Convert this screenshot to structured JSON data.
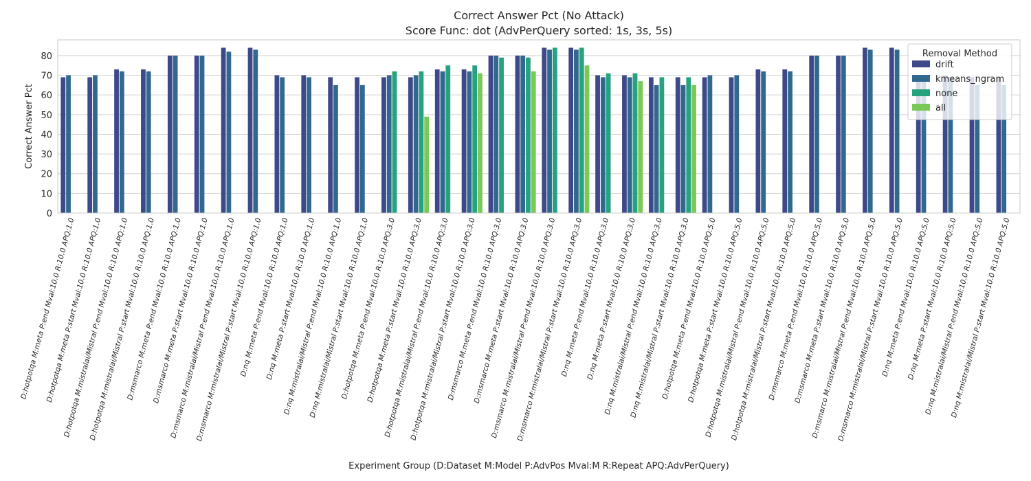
{
  "colors": {
    "drift": "#3e4989",
    "kmeans_ngram": "#31688e",
    "none": "#26a27f",
    "all": "#7ac857",
    "grid": "#d3d3d3",
    "axes": "#c8c8c8",
    "text": "#262626",
    "legend_border": "#cccccc"
  },
  "chart_data": {
    "type": "bar",
    "title_line1": "Correct Answer Pct (No Attack)",
    "title_line2": "Score Func: dot (AdvPerQuery sorted: 1s, 3s, 5s)",
    "xlabel": "Experiment Group (D:Dataset M:Model P:AdvPos Mval:M R:Repeat APQ:AdvPerQuery)",
    "ylabel": "Correct Answer Pct",
    "ylim": [
      0,
      88
    ],
    "yticks": [
      0,
      10,
      20,
      30,
      40,
      50,
      60,
      70,
      80
    ],
    "grid": true,
    "legend": {
      "title": "Removal Method",
      "placement": "top-right",
      "entries": [
        "drift",
        "kmeans_ngram",
        "none",
        "all"
      ]
    },
    "categories": [
      "D:hotpotqa M:meta P:end Mval:10.0 R:10.0 APQ:1.0",
      "D:hotpotqa M:meta P:start Mval:10.0 R:10.0 APQ:1.0",
      "D:hotpotqa M:mistralai/Mistral P:end Mval:10.0 R:10.0 APQ:1.0",
      "D:hotpotqa M:mistralai/Mistral P:start Mval:10.0 R:10.0 APQ:1.0",
      "D:msmarco M:meta P:end Mval:10.0 R:10.0 APQ:1.0",
      "D:msmarco M:meta P:start Mval:10.0 R:10.0 APQ:1.0",
      "D:msmarco M:mistralai/Mistral P:end Mval:10.0 R:10.0 APQ:1.0",
      "D:msmarco M:mistralai/Mistral P:start Mval:10.0 R:10.0 APQ:1.0",
      "D:nq M:meta P:end Mval:10.0 R:10.0 APQ:1.0",
      "D:nq M:meta P:start Mval:10.0 R:10.0 APQ:1.0",
      "D:nq M:mistralai/Mistral P:end Mval:10.0 R:10.0 APQ:1.0",
      "D:nq M:mistralai/Mistral P:start Mval:10.0 R:10.0 APQ:1.0",
      "D:hotpotqa M:meta P:end Mval:10.0 R:10.0 APQ:3.0",
      "D:hotpotqa M:meta P:start Mval:10.0 R:10.0 APQ:3.0",
      "D:hotpotqa M:mistralai/Mistral P:end Mval:10.0 R:10.0 APQ:3.0",
      "D:hotpotqa M:mistralai/Mistral P:start Mval:10.0 R:10.0 APQ:3.0",
      "D:msmarco M:meta P:end Mval:10.0 R:10.0 APQ:3.0",
      "D:msmarco M:meta P:start Mval:10.0 R:10.0 APQ:3.0",
      "D:msmarco M:mistralai/Mistral P:end Mval:10.0 R:10.0 APQ:3.0",
      "D:msmarco M:mistralai/Mistral P:start Mval:10.0 R:10.0 APQ:3.0",
      "D:nq M:meta P:end Mval:10.0 R:10.0 APQ:3.0",
      "D:nq M:meta P:start Mval:10.0 R:10.0 APQ:3.0",
      "D:nq M:mistralai/Mistral P:end Mval:10.0 R:10.0 APQ:3.0",
      "D:nq M:mistralai/Mistral P:start Mval:10.0 R:10.0 APQ:3.0",
      "D:hotpotqa M:meta P:end Mval:10.0 R:10.0 APQ:5.0",
      "D:hotpotqa M:meta P:start Mval:10.0 R:10.0 APQ:5.0",
      "D:hotpotqa M:mistralai/Mistral P:end Mval:10.0 R:10.0 APQ:5.0",
      "D:hotpotqa M:mistralai/Mistral P:start Mval:10.0 R:10.0 APQ:5.0",
      "D:msmarco M:meta P:end Mval:10.0 R:10.0 APQ:5.0",
      "D:msmarco M:meta P:start Mval:10.0 R:10.0 APQ:5.0",
      "D:msmarco M:mistralai/Mistral P:end Mval:10.0 R:10.0 APQ:5.0",
      "D:msmarco M:mistralai/Mistral P:start Mval:10.0 R:10.0 APQ:5.0",
      "D:nq M:meta P:end Mval:10.0 R:10.0 APQ:5.0",
      "D:nq M:meta P:start Mval:10.0 R:10.0 APQ:5.0",
      "D:nq M:mistralai/Mistral P:end Mval:10.0 R:10.0 APQ:5.0",
      "D:nq M:mistralai/Mistral P:start Mval:10.0 R:10.0 APQ:5.0"
    ],
    "series": [
      {
        "name": "drift",
        "values": [
          69,
          69,
          73,
          73,
          80,
          80,
          84,
          84,
          70,
          70,
          69,
          69,
          69,
          69,
          73,
          73,
          80,
          80,
          84,
          84,
          70,
          70,
          69,
          69,
          69,
          69,
          73,
          73,
          80,
          80,
          84,
          84,
          70,
          70,
          69,
          69
        ]
      },
      {
        "name": "kmeans_ngram",
        "values": [
          70,
          70,
          72,
          72,
          80,
          80,
          82,
          83,
          69,
          69,
          65,
          65,
          70,
          70,
          72,
          72,
          80,
          80,
          83,
          83,
          69,
          69,
          65,
          65,
          70,
          70,
          72,
          72,
          80,
          80,
          83,
          83,
          69,
          69,
          65,
          65
        ]
      },
      {
        "name": "none",
        "values": [
          null,
          null,
          null,
          null,
          null,
          null,
          null,
          null,
          null,
          null,
          null,
          null,
          72,
          72,
          75,
          75,
          79,
          79,
          84,
          84,
          71,
          71,
          69,
          69,
          null,
          null,
          null,
          null,
          null,
          null,
          null,
          null,
          null,
          null,
          null,
          null
        ]
      },
      {
        "name": "all",
        "values": [
          null,
          null,
          null,
          null,
          null,
          null,
          null,
          null,
          null,
          null,
          null,
          null,
          null,
          49,
          null,
          71,
          null,
          72,
          null,
          75,
          null,
          67,
          null,
          65,
          null,
          null,
          null,
          null,
          null,
          null,
          null,
          null,
          null,
          null,
          null,
          null
        ]
      }
    ]
  }
}
